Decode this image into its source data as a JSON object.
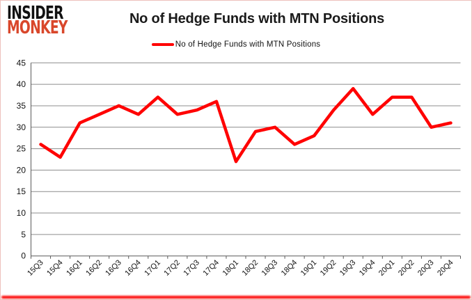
{
  "logo": {
    "line1": "INSIDER",
    "line2": "MONKEY"
  },
  "colors": {
    "logo_black": "#111111",
    "logo_red": "#d9472b",
    "line_red": "#FF0000",
    "grid": "#8c8c8c",
    "axis": "#595959",
    "label": "#111111",
    "frame_border": "#eec0bc",
    "bottom_bar": "#fb0100"
  },
  "chart_data": {
    "type": "line",
    "title": "No of Hedge Funds with MTN Positions",
    "legend_label": "No of Hedge Funds with MTN Positions",
    "legend_position": "top",
    "grid": true,
    "xlabel": "",
    "ylabel": "",
    "categories": [
      "15Q3",
      "15Q4",
      "16Q1",
      "16Q2",
      "16Q3",
      "16Q4",
      "17Q1",
      "17Q2",
      "17Q3",
      "17Q4",
      "18Q1",
      "18Q2",
      "18Q3",
      "18Q4",
      "19Q1",
      "19Q2",
      "19Q3",
      "19Q4",
      "20Q1",
      "20Q2",
      "20Q3",
      "20Q4"
    ],
    "values": [
      26,
      23,
      31,
      33,
      35,
      33,
      37,
      33,
      34,
      36,
      22,
      29,
      30,
      26,
      28,
      34,
      39,
      33,
      37,
      37,
      30,
      31
    ],
    "ylim": [
      0,
      45
    ],
    "ytick_step": 5,
    "line_color": "#FF0000"
  }
}
